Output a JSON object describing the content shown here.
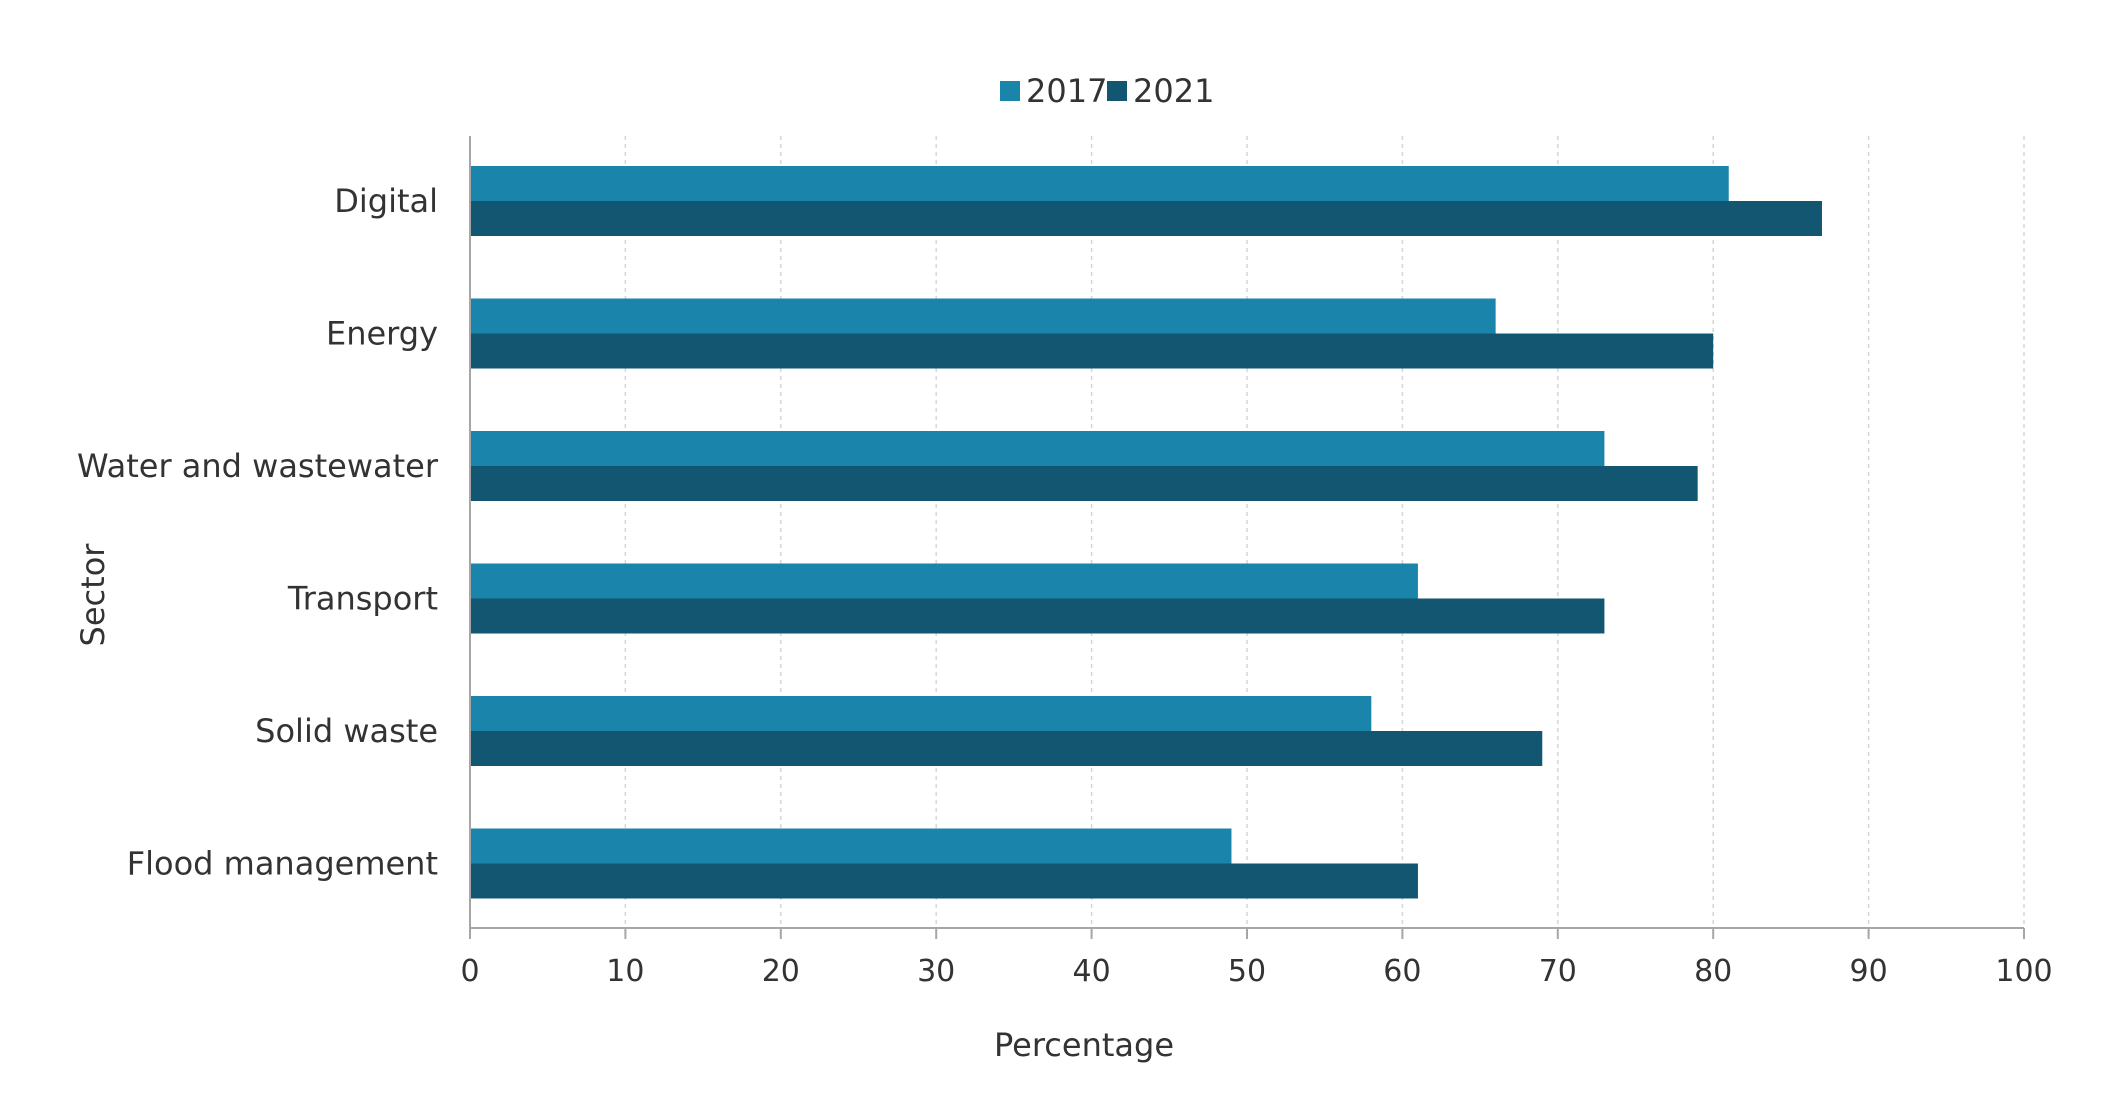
{
  "chart_data": {
    "type": "bar",
    "orientation": "horizontal",
    "title": "",
    "xlabel": "Percentage",
    "ylabel": "Sector",
    "xlim": [
      0,
      100
    ],
    "x_ticks": [
      0,
      10,
      20,
      30,
      40,
      50,
      60,
      70,
      80,
      90,
      100
    ],
    "grid": true,
    "legend_position": "top-center",
    "categories": [
      "Digital",
      "Energy",
      "Water and wastewater",
      "Transport",
      "Solid waste",
      "Flood management"
    ],
    "series": [
      {
        "name": "2017",
        "color": "#1b84ab",
        "values": [
          81,
          66,
          73,
          61,
          58,
          49
        ]
      },
      {
        "name": "2021",
        "color": "#135672",
        "values": [
          87,
          80,
          79,
          73,
          69,
          61
        ]
      }
    ]
  }
}
